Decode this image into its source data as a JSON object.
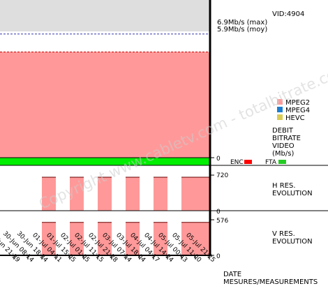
{
  "chart_data": {
    "type": "area",
    "vid": "VID:4904",
    "bitrate": {
      "max_label": "6.9Mb/s (max)",
      "avg_label": "5.9Mb/s (moy)",
      "max_value": 6.9,
      "avg_value": 5.9,
      "ymax": 8.8,
      "zero_label": "0",
      "title_lines": [
        "DEBIT",
        "BITRATE",
        "VIDEO",
        "(Mb/s)"
      ],
      "series": [
        {
          "name": "MPEG2",
          "color": "#ff9999"
        },
        {
          "name": "MPEG4",
          "color": "#1e7fd0"
        },
        {
          "name": "HEVC",
          "color": "#d9cc55"
        }
      ]
    },
    "status": {
      "enc_label": "ENC",
      "enc_color": "#ff0000",
      "fta_label": "FTA",
      "fta_color": "#22cc22"
    },
    "hres": {
      "top_label": "720",
      "zero_label": "0",
      "title_lines": [
        "H RES.",
        "EVOLUTION"
      ],
      "value": 720,
      "ymax": 960
    },
    "vres": {
      "top_label": "576",
      "zero_label": "0",
      "title_lines": [
        "V RES.",
        "EVOLUTION"
      ],
      "value": 576,
      "ymax": 768
    },
    "x_ticks": [
      "29-Jun 21:39",
      "30-Jun 08:14",
      "30-Jun 18:34",
      "01-Jul 04:51",
      "01-Jul 15:05",
      "02-Jul 01:05",
      "02-Jul 11:15",
      "02-Jul 21:28",
      "03-Jul 07:54",
      "03-Jul 18:04",
      "04-Jul 04:17",
      "04-Jul 14:24",
      "05-Jul 00:43",
      "05-Jul 11:00",
      "05-Jul 21:25"
    ],
    "resolution_segments": [
      {
        "start": "30-Jun 18:34",
        "end": "01-Jul 04:51"
      },
      {
        "start": "01-Jul 15:05",
        "end": "02-Jul 01:05"
      },
      {
        "start": "02-Jul 11:15",
        "end": "02-Jul 21:28"
      },
      {
        "start": "03-Jul 07:54",
        "end": "03-Jul 18:04"
      },
      {
        "start": "04-Jul 04:17",
        "end": "04-Jul 14:24"
      },
      {
        "start": "05-Jul 00:43",
        "end": "05-Jul 21:25"
      }
    ],
    "xlabel_lines": [
      "DATE",
      "MESURES/MEASUREMENTS"
    ],
    "watermark": "Copyright www.cabletv.com - totalbitrate.com"
  }
}
